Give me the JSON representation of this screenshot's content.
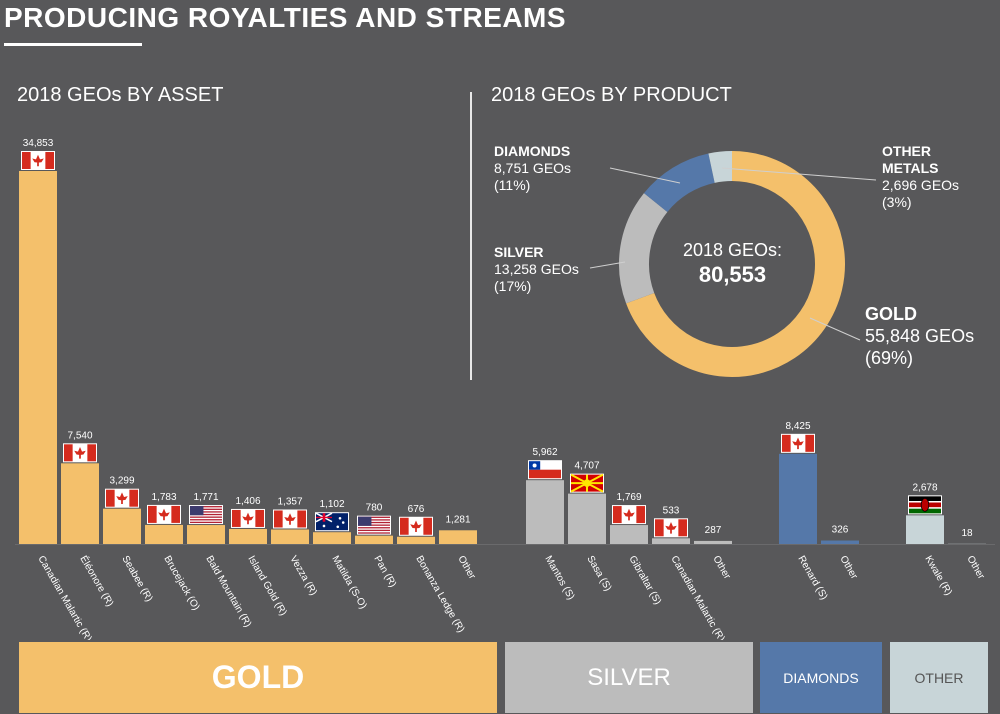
{
  "header": {
    "title": "PRODUCING ROYALTIES AND STREAMS",
    "left_subtitle": "2018 GEOs BY ASSET",
    "right_subtitle": "2018 GEOs BY PRODUCT"
  },
  "colors": {
    "gold": "#f4c06b",
    "silver": "#bcbcbc",
    "diamonds": "#5578a9",
    "other": "#c8d5d8",
    "background": "#58585a"
  },
  "chart_data": [
    {
      "type": "bar",
      "groups": [
        {
          "product": "gold",
          "color": "#f4c06b",
          "items": [
            {
              "label": "Canadian Malartic (R)",
              "value": 34853,
              "value_label": "34,853",
              "flag": "canada"
            },
            {
              "label": "Éléonore (R)",
              "value": 7540,
              "value_label": "7,540",
              "flag": "canada"
            },
            {
              "label": "Seabee (R)",
              "value": 3299,
              "value_label": "3,299",
              "flag": "canada"
            },
            {
              "label": "Brucejack (O)",
              "value": 1783,
              "value_label": "1,783",
              "flag": "canada"
            },
            {
              "label": "Bald Mountain (R)",
              "value": 1771,
              "value_label": "1,771",
              "flag": "usa"
            },
            {
              "label": "Island Gold (R)",
              "value": 1406,
              "value_label": "1,406",
              "flag": "canada"
            },
            {
              "label": "Vezza (R)",
              "value": 1357,
              "value_label": "1,357",
              "flag": "canada"
            },
            {
              "label": "Matilda (S-O)",
              "value": 1102,
              "value_label": "1,102",
              "flag": "australia"
            },
            {
              "label": "Pan (R)",
              "value": 780,
              "value_label": "780",
              "flag": "usa"
            },
            {
              "label": "Bonanza Ledge (R)",
              "value": 676,
              "value_label": "676",
              "flag": "canada"
            },
            {
              "label": "Other",
              "value": 1281,
              "value_label": "1,281",
              "flag": ""
            }
          ]
        },
        {
          "product": "silver",
          "color": "#bcbcbc",
          "items": [
            {
              "label": "Mantos (S)",
              "value": 5962,
              "value_label": "5,962",
              "flag": "chile"
            },
            {
              "label": "Sasa (S)",
              "value": 4707,
              "value_label": "4,707",
              "flag": "macedonia"
            },
            {
              "label": "Gibraltar (S)",
              "value": 1769,
              "value_label": "1,769",
              "flag": "canada"
            },
            {
              "label": "Canadian Malartic (R)",
              "value": 533,
              "value_label": "533",
              "flag": "canada"
            },
            {
              "label": "Other",
              "value": 287,
              "value_label": "287",
              "flag": ""
            }
          ]
        },
        {
          "product": "diamonds",
          "color": "#5578a9",
          "items": [
            {
              "label": "Renard (S)",
              "value": 8425,
              "value_label": "8,425",
              "flag": "canada"
            },
            {
              "label": "Other",
              "value": 326,
              "value_label": "326",
              "flag": ""
            }
          ]
        },
        {
          "product": "other",
          "color": "#c8d5d8",
          "items": [
            {
              "label": "Kwale (R)",
              "value": 2678,
              "value_label": "2,678",
              "flag": "kenya"
            },
            {
              "label": "Other",
              "value": 18,
              "value_label": "18",
              "flag": ""
            }
          ]
        }
      ],
      "ylim": [
        0,
        34853
      ]
    },
    {
      "type": "pie",
      "donut": true,
      "center_title": "2018 GEOs:",
      "center_value": "80,553",
      "total": 80553,
      "slices": [
        {
          "name": "GOLD",
          "value": 55848,
          "geos_label": "55,848 GEOs",
          "percent_label": "(69%)",
          "color": "#f4c06b"
        },
        {
          "name": "SILVER",
          "value": 13258,
          "geos_label": "13,258 GEOs",
          "percent_label": "(17%)",
          "color": "#bcbcbc"
        },
        {
          "name": "DIAMONDS",
          "value": 8751,
          "geos_label": "8,751 GEOs",
          "percent_label": "(11%)",
          "color": "#5578a9"
        },
        {
          "name": "OTHER METALS",
          "value": 2696,
          "geos_label": "2,696 GEOs",
          "percent_label": "(3%)",
          "color": "#c8d5d8"
        }
      ]
    }
  ],
  "legend": {
    "gold": "GOLD",
    "silver": "SILVER",
    "diamonds": "DIAMONDS",
    "other": "OTHER"
  }
}
